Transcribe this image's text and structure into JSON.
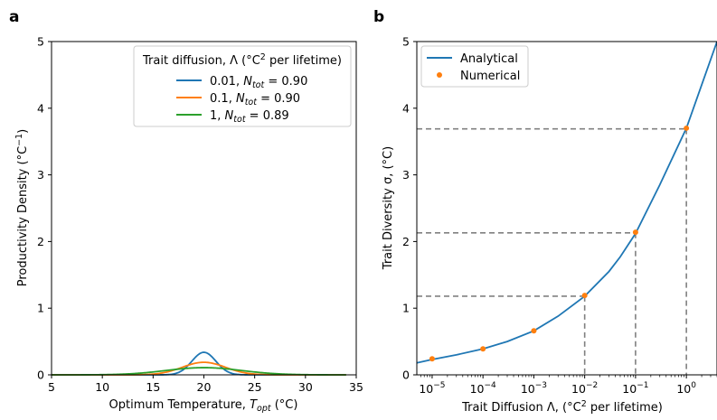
{
  "panels": {
    "a": {
      "label": "a"
    },
    "b": {
      "label": "b"
    }
  },
  "chart_data": [
    {
      "id": "a",
      "type": "line",
      "xlabel": "Optimum Temperature, T_opt (°C)",
      "xlabel_parts": {
        "main": "Optimum Temperature, ",
        "var": "T",
        "sub": "opt",
        "unit": " (°C)"
      },
      "ylabel": "Productivity Density (°C⁻¹)",
      "ylabel_parts": {
        "main": "Productivity Density (°C",
        "sup": "−1",
        "close": ")"
      },
      "xlim": [
        5,
        35
      ],
      "ylim": [
        0,
        5
      ],
      "xticks": [
        "5",
        "10",
        "15",
        "20",
        "25",
        "30",
        "35"
      ],
      "yticks": [
        "0",
        "1",
        "2",
        "3",
        "4",
        "5"
      ],
      "grid": false,
      "legend": {
        "placement": "top-right",
        "title": "Trait diffusion, Λ (°C² per lifetime)",
        "title_parts": {
          "pre": "Trait diffusion, Λ (°C",
          "sup": "2",
          "post": " per lifetime)"
        }
      },
      "series": [
        {
          "name": "0.01, N_tot = 0.90",
          "lambda_label": "0.01",
          "ntot": "0.90",
          "color": "#1f77b4",
          "center": 20,
          "sigma": 1.18,
          "x_range": [
            5,
            34
          ]
        },
        {
          "name": "0.1, N_tot = 0.90",
          "lambda_label": "0.1",
          "ntot": "0.90",
          "color": "#ff7f0e",
          "center": 20,
          "sigma": 2.12,
          "x_range": [
            5,
            34
          ]
        },
        {
          "name": "1, N_tot = 0.89",
          "lambda_label": "1",
          "ntot": "0.89",
          "color": "#2ca02c",
          "center": 20,
          "sigma": 3.7,
          "x_range": [
            5,
            34
          ]
        }
      ]
    },
    {
      "id": "b",
      "type": "line",
      "xlabel": "Trait Diffusion Λ, (°C² per lifetime)",
      "xlabel_parts": {
        "pre": "Trait Diffusion Λ, (°C",
        "sup": "2",
        "post": " per lifetime)"
      },
      "ylabel": "Trait Diversity σ, (°C)",
      "xscale": "log",
      "xlim": [
        5e-06,
        4
      ],
      "ylim": [
        0,
        5
      ],
      "xticks": [
        {
          "value": 1e-05,
          "base": "10",
          "exp": "−5"
        },
        {
          "value": 0.0001,
          "base": "10",
          "exp": "−4"
        },
        {
          "value": 0.001,
          "base": "10",
          "exp": "−3"
        },
        {
          "value": 0.01,
          "base": "10",
          "exp": "−2"
        },
        {
          "value": 0.1,
          "base": "10",
          "exp": "−1"
        },
        {
          "value": 1,
          "base": "10",
          "exp": "0"
        }
      ],
      "yticks": [
        "0",
        "1",
        "2",
        "3",
        "4",
        "5"
      ],
      "grid": false,
      "legend": {
        "placement": "top-left"
      },
      "series": [
        {
          "name": "Analytical",
          "style": "line",
          "color": "#1f77b4",
          "x": [
            5e-06,
            1e-05,
            3e-05,
            0.0001,
            0.0003,
            0.001,
            0.003,
            0.01,
            0.03,
            0.05,
            0.1,
            0.3,
            1,
            2,
            4
          ],
          "y": [
            0.18,
            0.23,
            0.3,
            0.39,
            0.5,
            0.66,
            0.88,
            1.18,
            1.55,
            1.77,
            2.12,
            2.85,
            3.7,
            4.35,
            5.0
          ]
        },
        {
          "name": "Numerical",
          "style": "markers",
          "color": "#ff7f0e",
          "x": [
            1e-05,
            0.0001,
            0.001,
            0.01,
            0.1,
            1
          ],
          "y": [
            0.24,
            0.39,
            0.66,
            1.19,
            2.14,
            3.7
          ]
        }
      ],
      "reference_lines": [
        {
          "x": 0.01,
          "y": 1.18
        },
        {
          "x": 0.1,
          "y": 2.13
        },
        {
          "x": 1,
          "y": 3.69
        }
      ]
    }
  ]
}
